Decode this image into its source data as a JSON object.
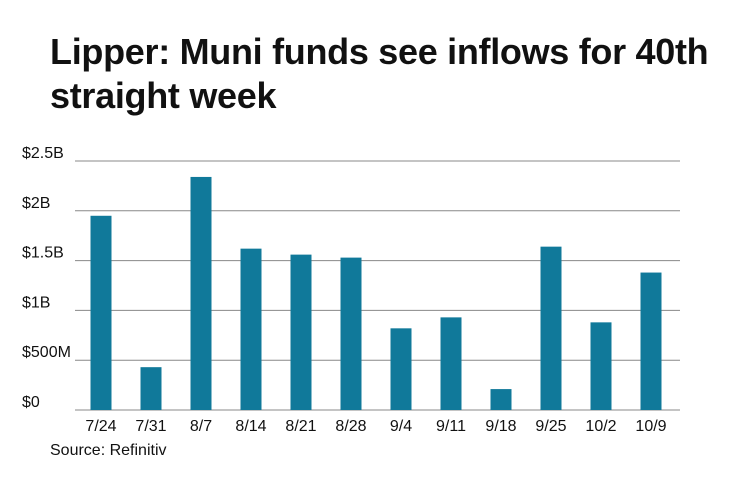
{
  "title": "Lipper: Muni funds see inflows for 40th straight week",
  "source": "Source: Refinitiv",
  "colors": {
    "bar": "#10799a",
    "grid": "#888888",
    "text": "#111111"
  },
  "chart_data": {
    "type": "bar",
    "title": "Lipper: Muni funds see inflows for 40th straight week",
    "xlabel": "",
    "ylabel": "",
    "categories": [
      "7/24",
      "7/31",
      "8/7",
      "8/14",
      "8/21",
      "8/28",
      "9/4",
      "9/11",
      "9/18",
      "9/25",
      "10/2",
      "10/9"
    ],
    "values": [
      1.95,
      0.43,
      2.34,
      1.62,
      1.56,
      1.53,
      0.82,
      0.93,
      0.21,
      1.64,
      0.88,
      1.38
    ],
    "ylim": [
      0,
      2.5
    ],
    "yticks": [
      0,
      0.5,
      1,
      1.5,
      2,
      2.5
    ],
    "ytick_labels": [
      "$0",
      "$500M",
      "$1B",
      "$1.5B",
      "$2B",
      "$2.5B"
    ],
    "units": "billions of dollars",
    "grid": true,
    "legend": "none"
  }
}
